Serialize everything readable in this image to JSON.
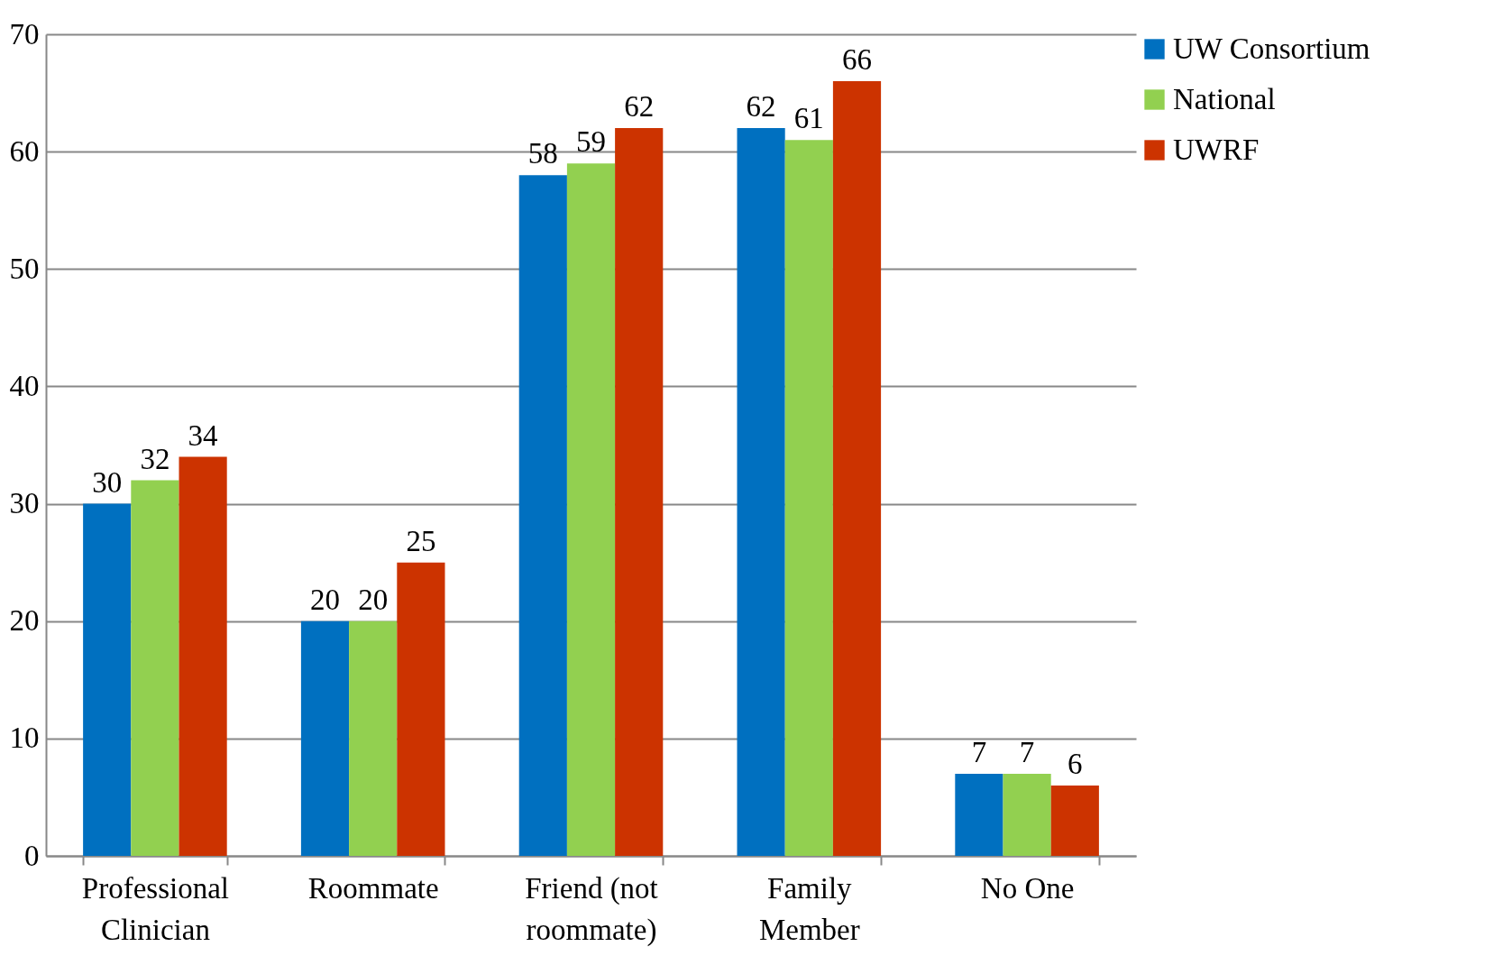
{
  "chart_data": {
    "type": "bar",
    "categories": [
      "Professional Clinician",
      "Roommate",
      "Friend (not roommate)",
      "Family Member",
      "No One"
    ],
    "series": [
      {
        "name": "UW Consortium",
        "color": "#0070c0",
        "values": [
          30,
          20,
          58,
          62,
          7
        ]
      },
      {
        "name": "National",
        "color": "#92d050",
        "values": [
          32,
          20,
          59,
          61,
          7
        ]
      },
      {
        "name": "UWRF",
        "color": "#cc3300",
        "values": [
          34,
          25,
          62,
          66,
          6
        ]
      }
    ],
    "ylim": [
      0,
      70
    ],
    "yticks": [
      0,
      10,
      20,
      30,
      40,
      50,
      60,
      70
    ],
    "grid": "y",
    "legend": "right",
    "data_labels": true
  }
}
